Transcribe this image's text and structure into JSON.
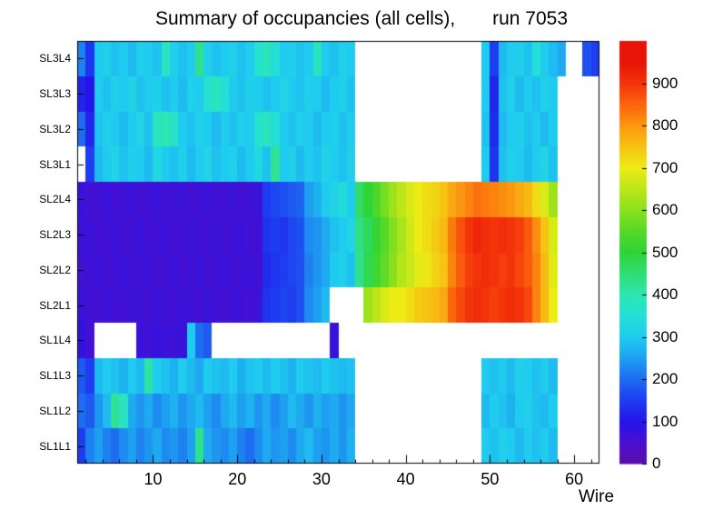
{
  "title": "Summary of occupancies (all cells),       run 7053",
  "chart_data": {
    "type": "heatmap",
    "title": "Summary of occupancies (all cells),       run 7053",
    "xlabel": "Wire",
    "ylabel": "",
    "x_range": [
      1,
      62
    ],
    "x_ticks": [
      10,
      20,
      30,
      40,
      50,
      60
    ],
    "x_minor_tick_step": 2,
    "rows": [
      "SL1L1",
      "SL1L2",
      "SL1L3",
      "SL1L4",
      "SL2L1",
      "SL2L2",
      "SL2L3",
      "SL2L4",
      "SL3L1",
      "SL3L2",
      "SL3L3",
      "SL3L4"
    ],
    "colorbar": {
      "min": 0,
      "max": 1000,
      "ticks": [
        0,
        100,
        200,
        300,
        400,
        500,
        600,
        700,
        800,
        900
      ]
    },
    "palette": [
      [
        0,
        "#5c0da8"
      ],
      [
        50,
        "#4a10cf"
      ],
      [
        100,
        "#2414e8"
      ],
      [
        150,
        "#1e3cf0"
      ],
      [
        200,
        "#1e6cf0"
      ],
      [
        250,
        "#1ea0f0"
      ],
      [
        300,
        "#1fcbee"
      ],
      [
        350,
        "#23e0d6"
      ],
      [
        400,
        "#2ee6b0"
      ],
      [
        450,
        "#30dd75"
      ],
      [
        500,
        "#2ed435"
      ],
      [
        550,
        "#55d829"
      ],
      [
        600,
        "#8ae01e"
      ],
      [
        650,
        "#bce619"
      ],
      [
        700,
        "#ecec14"
      ],
      [
        750,
        "#f6c313"
      ],
      [
        800,
        "#fb9710"
      ],
      [
        850,
        "#fb660d"
      ],
      [
        900,
        "#f3340b"
      ],
      [
        950,
        "#e81408"
      ]
    ],
    "matrix": [
      [
        150,
        220,
        250,
        220,
        200,
        230,
        250,
        220,
        240,
        260,
        230,
        240,
        220,
        250,
        430,
        260,
        240,
        230,
        250,
        220,
        200,
        230,
        260,
        240,
        250,
        230,
        260,
        280,
        250,
        240,
        260,
        240,
        270,
        null,
        null,
        null,
        null,
        null,
        null,
        null,
        null,
        null,
        null,
        null,
        null,
        null,
        null,
        null,
        300,
        290,
        310,
        300,
        280,
        300,
        290,
        300,
        280,
        null,
        null,
        null,
        null,
        null
      ],
      [
        200,
        180,
        240,
        280,
        420,
        380,
        260,
        240,
        260,
        230,
        250,
        270,
        240,
        260,
        280,
        250,
        230,
        260,
        280,
        250,
        270,
        240,
        260,
        230,
        250,
        280,
        260,
        240,
        270,
        250,
        260,
        240,
        260,
        null,
        null,
        null,
        null,
        null,
        null,
        null,
        null,
        null,
        null,
        null,
        null,
        null,
        null,
        null,
        280,
        300,
        290,
        270,
        300,
        310,
        290,
        280,
        300,
        null,
        null,
        null,
        null,
        null
      ],
      [
        180,
        150,
        280,
        300,
        290,
        270,
        300,
        280,
        410,
        300,
        290,
        270,
        300,
        280,
        260,
        300,
        290,
        280,
        300,
        270,
        290,
        300,
        280,
        300,
        290,
        270,
        300,
        290,
        280,
        300,
        290,
        280,
        290,
        null,
        null,
        null,
        null,
        null,
        null,
        null,
        null,
        null,
        null,
        null,
        null,
        null,
        null,
        null,
        300,
        290,
        300,
        280,
        310,
        300,
        290,
        300,
        280,
        null,
        null,
        null,
        null,
        null
      ],
      [
        80,
        60,
        null,
        null,
        null,
        null,
        null,
        70,
        65,
        75,
        70,
        68,
        72,
        300,
        200,
        180,
        null,
        null,
        null,
        null,
        null,
        null,
        null,
        null,
        null,
        null,
        null,
        null,
        null,
        null,
        75,
        null,
        null,
        null,
        null,
        null,
        null,
        null,
        null,
        null,
        null,
        null,
        null,
        null,
        null,
        null,
        null,
        null,
        null,
        null,
        null,
        null,
        null,
        null,
        null,
        null,
        null,
        null,
        null,
        null,
        null,
        null
      ],
      [
        70,
        65,
        60,
        70,
        65,
        60,
        70,
        65,
        60,
        70,
        65,
        60,
        70,
        65,
        60,
        70,
        65,
        60,
        70,
        65,
        60,
        70,
        140,
        150,
        160,
        150,
        170,
        230,
        250,
        280,
        null,
        null,
        null,
        null,
        620,
        650,
        680,
        700,
        700,
        720,
        740,
        750,
        760,
        780,
        850,
        880,
        900,
        910,
        900,
        890,
        900,
        910,
        900,
        880,
        820,
        760,
        700,
        null,
        null,
        null,
        null,
        null
      ],
      [
        60,
        65,
        70,
        60,
        65,
        70,
        60,
        65,
        70,
        60,
        65,
        70,
        60,
        65,
        70,
        60,
        65,
        70,
        60,
        65,
        70,
        60,
        130,
        140,
        150,
        160,
        170,
        220,
        240,
        260,
        300,
        310,
        290,
        430,
        480,
        520,
        560,
        600,
        640,
        660,
        690,
        710,
        730,
        750,
        820,
        860,
        890,
        900,
        910,
        900,
        890,
        900,
        880,
        860,
        820,
        760,
        690,
        null,
        null,
        null,
        null,
        null
      ],
      [
        65,
        70,
        60,
        65,
        70,
        60,
        65,
        70,
        60,
        65,
        70,
        60,
        65,
        70,
        60,
        65,
        70,
        60,
        65,
        70,
        60,
        65,
        140,
        150,
        140,
        160,
        170,
        230,
        240,
        260,
        290,
        300,
        320,
        440,
        470,
        510,
        550,
        590,
        630,
        670,
        700,
        720,
        740,
        760,
        830,
        870,
        900,
        920,
        910,
        900,
        910,
        900,
        890,
        860,
        810,
        750,
        680,
        null,
        null,
        null,
        null,
        null
      ],
      [
        70,
        60,
        65,
        70,
        60,
        65,
        70,
        60,
        65,
        70,
        60,
        65,
        70,
        60,
        65,
        70,
        60,
        65,
        70,
        60,
        65,
        70,
        150,
        160,
        170,
        180,
        190,
        250,
        270,
        300,
        320,
        340,
        300,
        460,
        500,
        540,
        580,
        620,
        650,
        680,
        700,
        720,
        730,
        750,
        780,
        800,
        820,
        840,
        830,
        820,
        810,
        800,
        780,
        760,
        720,
        680,
        620,
        null,
        null,
        null,
        null,
        null
      ],
      [
        null,
        150,
        280,
        300,
        320,
        290,
        310,
        300,
        280,
        330,
        300,
        290,
        310,
        280,
        300,
        320,
        290,
        300,
        310,
        280,
        300,
        330,
        290,
        420,
        300,
        310,
        280,
        300,
        290,
        320,
        300,
        290,
        310,
        null,
        null,
        null,
        null,
        null,
        null,
        null,
        null,
        null,
        null,
        null,
        null,
        null,
        null,
        null,
        300,
        140,
        290,
        310,
        300,
        280,
        300,
        320,
        290,
        null,
        null,
        null,
        null,
        null
      ],
      [
        200,
        120,
        290,
        310,
        300,
        280,
        300,
        320,
        290,
        380,
        400,
        370,
        300,
        290,
        310,
        300,
        280,
        300,
        290,
        310,
        300,
        360,
        380,
        350,
        300,
        290,
        310,
        300,
        280,
        300,
        310,
        290,
        300,
        null,
        null,
        null,
        null,
        null,
        null,
        null,
        null,
        null,
        null,
        null,
        null,
        null,
        null,
        null,
        290,
        130,
        280,
        300,
        310,
        290,
        300,
        280,
        300,
        null,
        null,
        null,
        null,
        null
      ],
      [
        120,
        100,
        300,
        290,
        310,
        300,
        320,
        290,
        300,
        310,
        290,
        300,
        280,
        310,
        300,
        360,
        380,
        350,
        300,
        290,
        310,
        300,
        290,
        300,
        320,
        300,
        290,
        310,
        300,
        280,
        300,
        310,
        290,
        null,
        null,
        null,
        null,
        null,
        null,
        null,
        null,
        null,
        null,
        null,
        null,
        null,
        null,
        null,
        300,
        120,
        290,
        310,
        280,
        300,
        290,
        310,
        300,
        null,
        null,
        null,
        null,
        null
      ],
      [
        220,
        140,
        300,
        310,
        290,
        300,
        280,
        310,
        300,
        290,
        380,
        310,
        290,
        300,
        430,
        310,
        290,
        300,
        310,
        290,
        300,
        360,
        380,
        350,
        300,
        310,
        290,
        300,
        380,
        300,
        290,
        310,
        300,
        null,
        null,
        null,
        null,
        null,
        null,
        null,
        null,
        null,
        null,
        null,
        null,
        null,
        null,
        null,
        300,
        150,
        280,
        300,
        310,
        290,
        350,
        300,
        280,
        260,
        null,
        null,
        170,
        150
      ]
    ]
  }
}
